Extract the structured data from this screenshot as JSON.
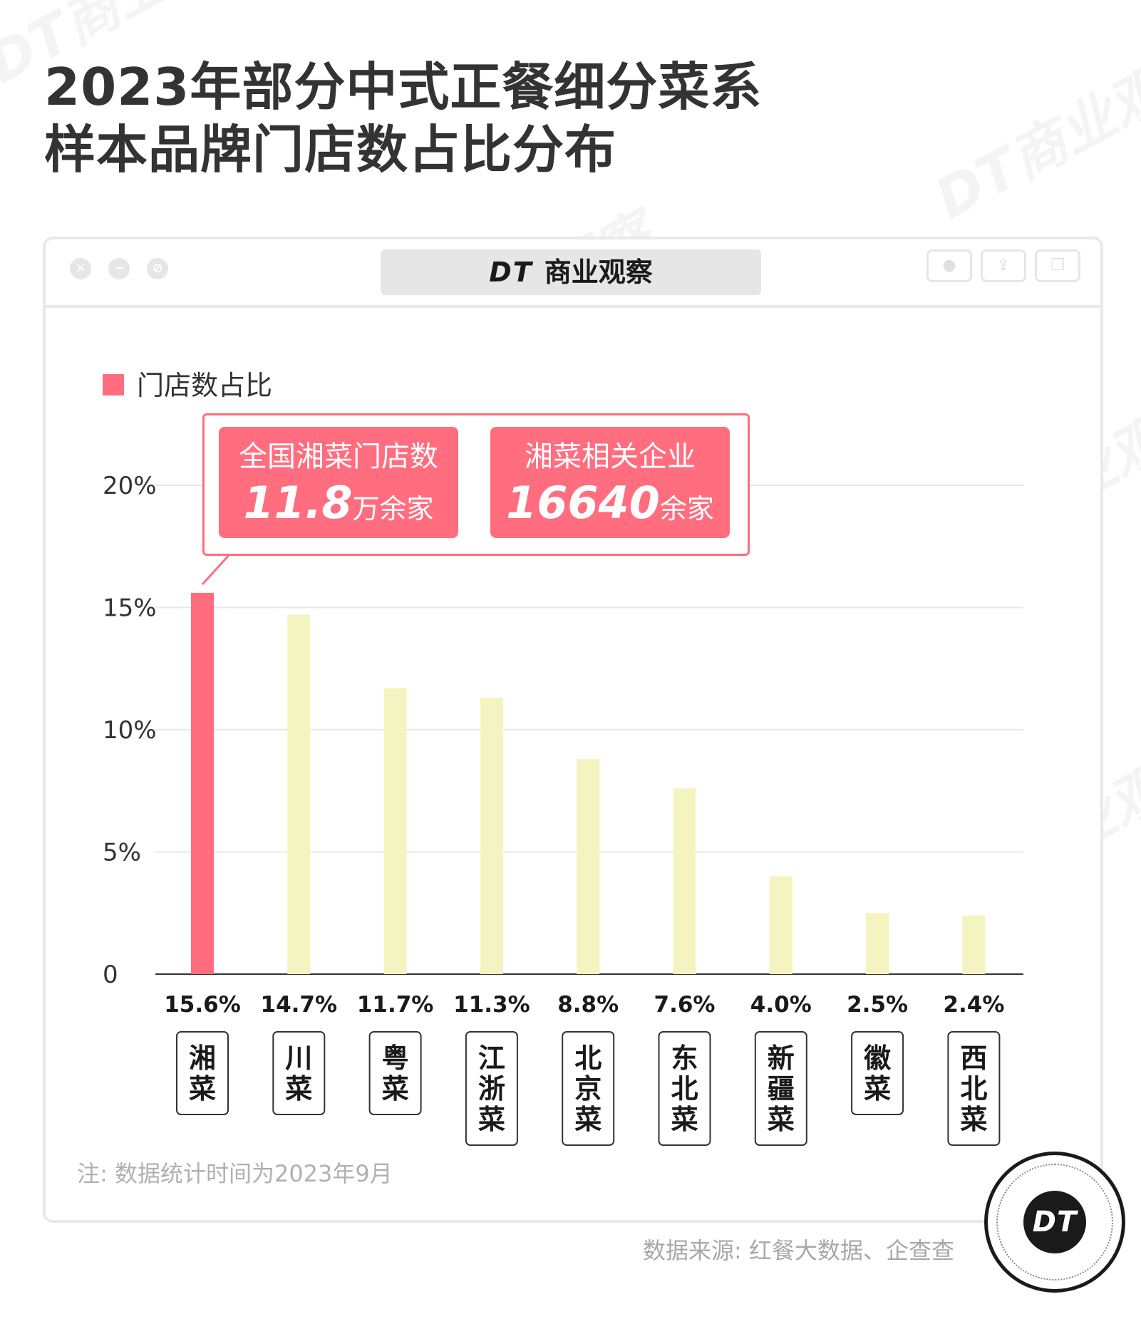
{
  "title": {
    "line1": "2023年部分中式正餐细分菜系",
    "line2": "样本品牌门店数占比分布"
  },
  "window": {
    "brand_mark": "DT",
    "brand_name": "商业观察"
  },
  "watermark_text": "DT商业观察",
  "legend": {
    "label": "门店数占比",
    "color": "#ff6d7e"
  },
  "callouts": [
    {
      "label": "全国湘菜门店数",
      "value": "11.8",
      "unit": "万余家"
    },
    {
      "label": "湘菜相关企业",
      "value": "16640",
      "unit": "余家"
    }
  ],
  "chart_data": {
    "type": "bar",
    "categories": [
      "湘菜",
      "川菜",
      "粤菜",
      "江浙菜",
      "北京菜",
      "东北菜",
      "新疆菜",
      "徽菜",
      "西北菜"
    ],
    "values": [
      15.6,
      14.7,
      11.7,
      11.3,
      8.8,
      7.6,
      4.0,
      2.5,
      2.4
    ],
    "value_labels": [
      "15.6%",
      "14.7%",
      "11.7%",
      "11.3%",
      "8.8%",
      "7.6%",
      "4.0%",
      "2.5%",
      "2.4%"
    ],
    "ylim": [
      0,
      20
    ],
    "yticks": [
      0,
      5,
      10,
      15,
      20
    ],
    "ytick_labels": [
      "0",
      "5%",
      "10%",
      "15%",
      "20%"
    ],
    "highlight_index": 0,
    "colors": {
      "highlight": "#ff6d7e",
      "default": "#f3f4bf"
    },
    "grid": true
  },
  "note": "注: 数据统计时间为2023年9月",
  "source": "数据来源: 红餐大数据、企查查",
  "logo_text": "DT"
}
